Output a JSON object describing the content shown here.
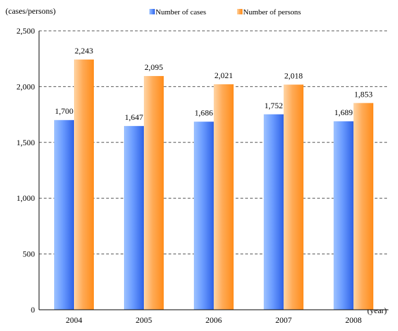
{
  "chart_data": {
    "type": "bar",
    "categories": [
      "2004",
      "2005",
      "2006",
      "2007",
      "2008"
    ],
    "series": [
      {
        "name": "Number of cases",
        "values": [
          1700,
          1647,
          1686,
          1752,
          1689
        ],
        "labels": [
          "1,700",
          "1,647",
          "1,686",
          "1,752",
          "1,689"
        ],
        "color": "#4d7ff0"
      },
      {
        "name": "Number of persons",
        "values": [
          2243,
          2095,
          2021,
          2018,
          1853
        ],
        "labels": [
          "2,243",
          "2,095",
          "2,021",
          "2,018",
          "1,853"
        ],
        "color": "#ff9933"
      }
    ],
    "ylabel": "(cases/persons)",
    "xlabel": "(year)",
    "ylim": [
      0,
      2500
    ],
    "yticks": [
      0,
      500,
      1000,
      1500,
      2000,
      2500
    ],
    "ytick_labels": [
      "0",
      "500",
      "1,000",
      "1,500",
      "2,000",
      "2,500"
    ],
    "grid": true,
    "legend": "top-center"
  }
}
